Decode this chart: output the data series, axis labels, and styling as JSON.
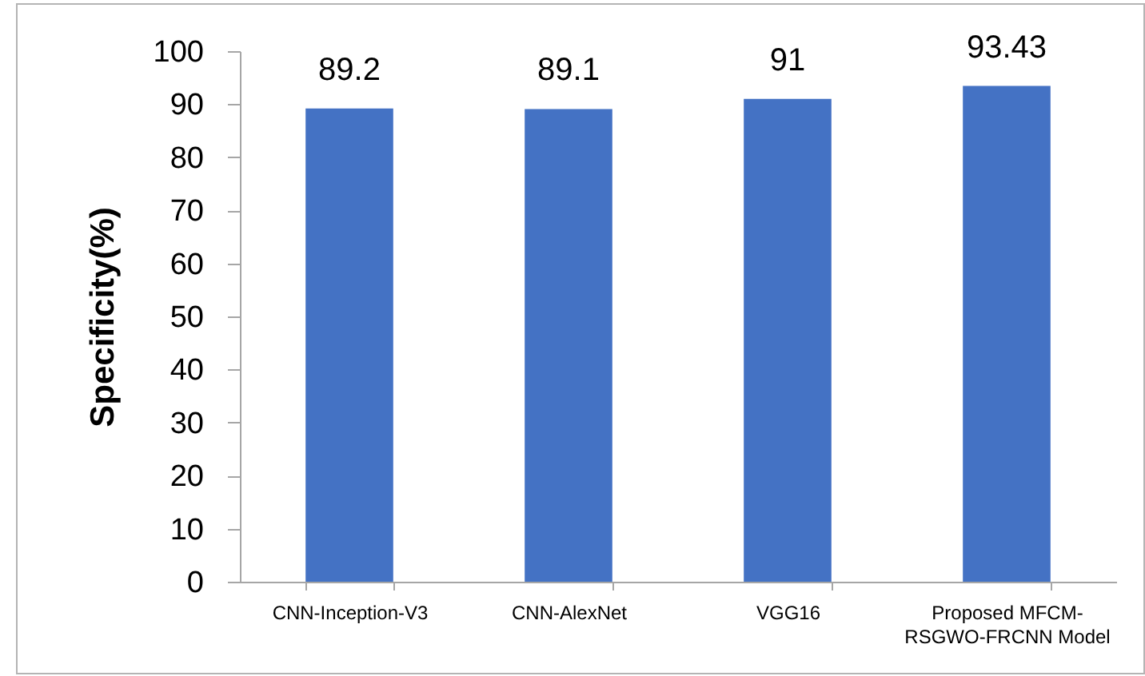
{
  "chart_data": {
    "type": "bar",
    "ylabel": "Specificity(%)",
    "categories": [
      "CNN-Inception-V3",
      "CNN-AlexNet",
      "VGG16",
      "Proposed MFCM-RSGWO-FRCNN Model"
    ],
    "values": [
      89.2,
      89.1,
      91,
      93.43
    ],
    "color": "#4472c4",
    "ylim": [
      0,
      100
    ],
    "yticks": [
      0,
      10,
      20,
      30,
      40,
      50,
      60,
      70,
      80,
      90,
      100
    ],
    "data_labels": true
  }
}
